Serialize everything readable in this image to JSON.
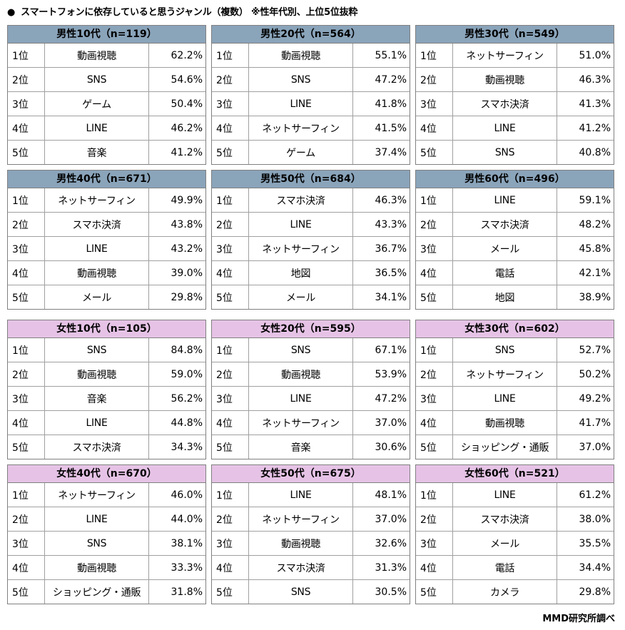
{
  "title": {
    "bullet": "●",
    "text": "スマートフォンに依存していると思うジャンル（複数） ※性年代別、上位5位抜粋"
  },
  "credit": "MMD研究所調べ",
  "blocks": [
    {
      "gender": "male",
      "header": "男性10代（n=119）",
      "rows": [
        {
          "rank": "1位",
          "genre": "動画視聴",
          "pct": "62.2%"
        },
        {
          "rank": "2位",
          "genre": "SNS",
          "pct": "54.6%"
        },
        {
          "rank": "3位",
          "genre": "ゲーム",
          "pct": "50.4%"
        },
        {
          "rank": "4位",
          "genre": "LINE",
          "pct": "46.2%"
        },
        {
          "rank": "5位",
          "genre": "音楽",
          "pct": "41.2%"
        }
      ]
    },
    {
      "gender": "male",
      "header": "男性20代（n=564）",
      "rows": [
        {
          "rank": "1位",
          "genre": "動画視聴",
          "pct": "55.1%"
        },
        {
          "rank": "2位",
          "genre": "SNS",
          "pct": "47.2%"
        },
        {
          "rank": "3位",
          "genre": "LINE",
          "pct": "41.8%"
        },
        {
          "rank": "4位",
          "genre": "ネットサーフィン",
          "pct": "41.5%"
        },
        {
          "rank": "5位",
          "genre": "ゲーム",
          "pct": "37.4%"
        }
      ]
    },
    {
      "gender": "male",
      "header": "男性30代（n=549）",
      "rows": [
        {
          "rank": "1位",
          "genre": "ネットサーフィン",
          "pct": "51.0%"
        },
        {
          "rank": "2位",
          "genre": "動画視聴",
          "pct": "46.3%"
        },
        {
          "rank": "3位",
          "genre": "スマホ決済",
          "pct": "41.3%"
        },
        {
          "rank": "4位",
          "genre": "LINE",
          "pct": "41.2%"
        },
        {
          "rank": "5位",
          "genre": "SNS",
          "pct": "40.8%"
        }
      ]
    },
    {
      "gender": "male",
      "header": "男性40代（n=671）",
      "rows": [
        {
          "rank": "1位",
          "genre": "ネットサーフィン",
          "pct": "49.9%"
        },
        {
          "rank": "2位",
          "genre": "スマホ決済",
          "pct": "43.8%"
        },
        {
          "rank": "3位",
          "genre": "LINE",
          "pct": "43.2%"
        },
        {
          "rank": "4位",
          "genre": "動画視聴",
          "pct": "39.0%"
        },
        {
          "rank": "5位",
          "genre": "メール",
          "pct": "29.8%"
        }
      ]
    },
    {
      "gender": "male",
      "header": "男性50代（n=684）",
      "rows": [
        {
          "rank": "1位",
          "genre": "スマホ決済",
          "pct": "46.3%"
        },
        {
          "rank": "2位",
          "genre": "LINE",
          "pct": "43.3%"
        },
        {
          "rank": "3位",
          "genre": "ネットサーフィン",
          "pct": "36.7%"
        },
        {
          "rank": "4位",
          "genre": "地図",
          "pct": "36.5%"
        },
        {
          "rank": "5位",
          "genre": "メール",
          "pct": "34.1%"
        }
      ]
    },
    {
      "gender": "male",
      "header": "男性60代（n=496）",
      "rows": [
        {
          "rank": "1位",
          "genre": "LINE",
          "pct": "59.1%"
        },
        {
          "rank": "2位",
          "genre": "スマホ決済",
          "pct": "48.2%"
        },
        {
          "rank": "3位",
          "genre": "メール",
          "pct": "45.8%"
        },
        {
          "rank": "4位",
          "genre": "電話",
          "pct": "42.1%"
        },
        {
          "rank": "5位",
          "genre": "地図",
          "pct": "38.9%"
        }
      ]
    },
    {
      "gender": "female",
      "header": "女性10代（n=105）",
      "rows": [
        {
          "rank": "1位",
          "genre": "SNS",
          "pct": "84.8%"
        },
        {
          "rank": "2位",
          "genre": "動画視聴",
          "pct": "59.0%"
        },
        {
          "rank": "3位",
          "genre": "音楽",
          "pct": "56.2%"
        },
        {
          "rank": "4位",
          "genre": "LINE",
          "pct": "44.8%"
        },
        {
          "rank": "5位",
          "genre": "スマホ決済",
          "pct": "34.3%"
        }
      ]
    },
    {
      "gender": "female",
      "header": "女性20代（n=595）",
      "rows": [
        {
          "rank": "1位",
          "genre": "SNS",
          "pct": "67.1%"
        },
        {
          "rank": "2位",
          "genre": "動画視聴",
          "pct": "53.9%"
        },
        {
          "rank": "3位",
          "genre": "LINE",
          "pct": "47.2%"
        },
        {
          "rank": "4位",
          "genre": "ネットサーフィン",
          "pct": "37.0%"
        },
        {
          "rank": "5位",
          "genre": "音楽",
          "pct": "30.6%"
        }
      ]
    },
    {
      "gender": "female",
      "header": "女性30代（n=602）",
      "rows": [
        {
          "rank": "1位",
          "genre": "SNS",
          "pct": "52.7%"
        },
        {
          "rank": "2位",
          "genre": "ネットサーフィン",
          "pct": "50.2%"
        },
        {
          "rank": "3位",
          "genre": "LINE",
          "pct": "49.2%"
        },
        {
          "rank": "4位",
          "genre": "動画視聴",
          "pct": "41.7%"
        },
        {
          "rank": "5位",
          "genre": "ショッピング・通販",
          "pct": "37.0%"
        }
      ]
    },
    {
      "gender": "female",
      "header": "女性40代（n=670）",
      "rows": [
        {
          "rank": "1位",
          "genre": "ネットサーフィン",
          "pct": "46.0%"
        },
        {
          "rank": "2位",
          "genre": "LINE",
          "pct": "44.0%"
        },
        {
          "rank": "3位",
          "genre": "SNS",
          "pct": "38.1%"
        },
        {
          "rank": "4位",
          "genre": "動画視聴",
          "pct": "33.3%"
        },
        {
          "rank": "5位",
          "genre": "ショッピング・通販",
          "pct": "31.8%"
        }
      ]
    },
    {
      "gender": "female",
      "header": "女性50代（n=675）",
      "rows": [
        {
          "rank": "1位",
          "genre": "LINE",
          "pct": "48.1%"
        },
        {
          "rank": "2位",
          "genre": "ネットサーフィン",
          "pct": "37.0%"
        },
        {
          "rank": "3位",
          "genre": "動画視聴",
          "pct": "32.6%"
        },
        {
          "rank": "4位",
          "genre": "スマホ決済",
          "pct": "31.3%"
        },
        {
          "rank": "5位",
          "genre": "SNS",
          "pct": "30.5%"
        }
      ]
    },
    {
      "gender": "female",
      "header": "女性60代（n=521）",
      "rows": [
        {
          "rank": "1位",
          "genre": "LINE",
          "pct": "61.2%"
        },
        {
          "rank": "2位",
          "genre": "スマホ決済",
          "pct": "38.0%"
        },
        {
          "rank": "3位",
          "genre": "メール",
          "pct": "35.5%"
        },
        {
          "rank": "4位",
          "genre": "電話",
          "pct": "34.4%"
        },
        {
          "rank": "5位",
          "genre": "カメラ",
          "pct": "29.8%"
        }
      ]
    }
  ]
}
